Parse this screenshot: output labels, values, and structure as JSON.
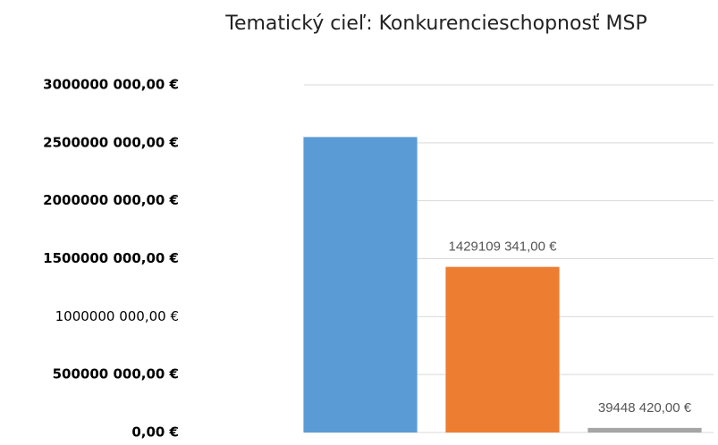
{
  "chart_data": {
    "type": "bar",
    "title": "Tematický cieľ: Konkurencieschopnosť MSP",
    "categories": [
      null,
      null,
      null
    ],
    "values": [
      2550000000,
      1429109341,
      39448420
    ],
    "value_labels": [
      null,
      "1429109 341,00 €",
      "39448 420,00 €"
    ],
    "colors": [
      "#5b9bd5",
      "#ed7d31",
      "#a5a5a5"
    ],
    "ylim": [
      0,
      3000000000
    ],
    "yticks": [
      {
        "value": 0,
        "label": "0,00 €"
      },
      {
        "value": 500000000,
        "label": "500000 000,00 €"
      },
      {
        "value": 1000000000,
        "label": "1000000 000,00 €"
      },
      {
        "value": 1500000000,
        "label": "1500000 000,00 €"
      },
      {
        "value": 2000000000,
        "label": "2000000 000,00 €"
      },
      {
        "value": 2500000000,
        "label": "2500000 000,00 €"
      },
      {
        "value": 3000000000,
        "label": "3000000 000,00 €"
      }
    ],
    "grid": true
  }
}
